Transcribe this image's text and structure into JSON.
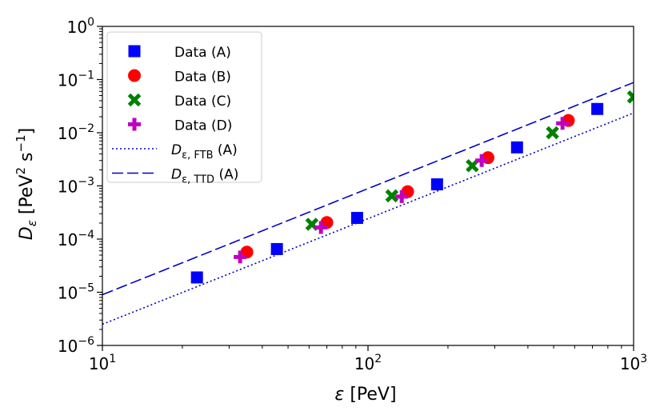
{
  "chart_data": {
    "type": "scatter",
    "xscale": "log",
    "yscale": "log",
    "xlim": [
      10,
      1000
    ],
    "ylim": [
      1e-06,
      1
    ],
    "xlabel": "ε [PeV]",
    "ylabel": "D_ε [PeV² s⁻¹]",
    "xticks": [
      {
        "value": 10,
        "base": "10",
        "exp": "1"
      },
      {
        "value": 100,
        "base": "10",
        "exp": "2"
      },
      {
        "value": 1000,
        "base": "10",
        "exp": "3"
      }
    ],
    "yticks": [
      {
        "value": 1e-06,
        "base": "10",
        "exp": "−6"
      },
      {
        "value": 1e-05,
        "base": "10",
        "exp": "−5"
      },
      {
        "value": 0.0001,
        "base": "10",
        "exp": "−4"
      },
      {
        "value": 0.001,
        "base": "10",
        "exp": "−3"
      },
      {
        "value": 0.01,
        "base": "10",
        "exp": "−2"
      },
      {
        "value": 0.1,
        "base": "10",
        "exp": "−1"
      },
      {
        "value": 1,
        "base": "10",
        "exp": "0"
      }
    ],
    "series": [
      {
        "name": "Data (A)",
        "marker": "square",
        "color": "#0000ff",
        "x": [
          22.7,
          45.4,
          91,
          182,
          364,
          730
        ],
        "y": [
          1.9e-05,
          6.5e-05,
          0.00025,
          0.00107,
          0.0053,
          0.028
        ]
      },
      {
        "name": "Data (B)",
        "marker": "circle",
        "color": "#ff0000",
        "x": [
          35,
          70,
          141,
          283,
          568
        ],
        "y": [
          5.7e-05,
          0.000205,
          0.00078,
          0.0034,
          0.017
        ]
      },
      {
        "name": "Data (C)",
        "marker": "x",
        "color": "#008000",
        "x": [
          61.5,
          123,
          247,
          495,
          1000
        ],
        "y": [
          0.00019,
          0.00065,
          0.0024,
          0.01,
          0.047
        ]
      },
      {
        "name": "Data (D)",
        "marker": "plus",
        "color": "#bf00bf",
        "x": [
          33,
          66.5,
          134,
          268,
          540
        ],
        "y": [
          4.6e-05,
          0.000165,
          0.00063,
          0.003,
          0.015
        ]
      }
    ],
    "lines": [
      {
        "name": "D_ε,FTB (A)",
        "style": "dotted",
        "color": "#0000cc",
        "x": [
          10,
          1000
        ],
        "y": [
          2.5e-06,
          0.0235
        ]
      },
      {
        "name": "D_ε,TTD (A)",
        "style": "dashed",
        "color": "#0000cc",
        "x": [
          10,
          1000
        ],
        "y": [
          9e-06,
          0.088
        ]
      }
    ],
    "legend": {
      "placement": "top-left",
      "entries": [
        {
          "label": "Data (A)"
        },
        {
          "label": "Data (B)"
        },
        {
          "label": "Data (C)"
        },
        {
          "label": "Data (D)"
        },
        {
          "label_main": "D",
          "label_sub": "ε, FTB",
          "label_tail": " (A)"
        },
        {
          "label_main": "D",
          "label_sub": "ε, TTD",
          "label_tail": " (A)"
        }
      ]
    },
    "ylabel_parts": {
      "main": "D",
      "sub": "ε",
      "unit": " [PeV",
      "sup1": "2",
      "mid": " s",
      "sup2": "−1",
      "end": "]"
    },
    "xlabel_parts": {
      "main": "ε",
      "unit": " [PeV]"
    }
  }
}
